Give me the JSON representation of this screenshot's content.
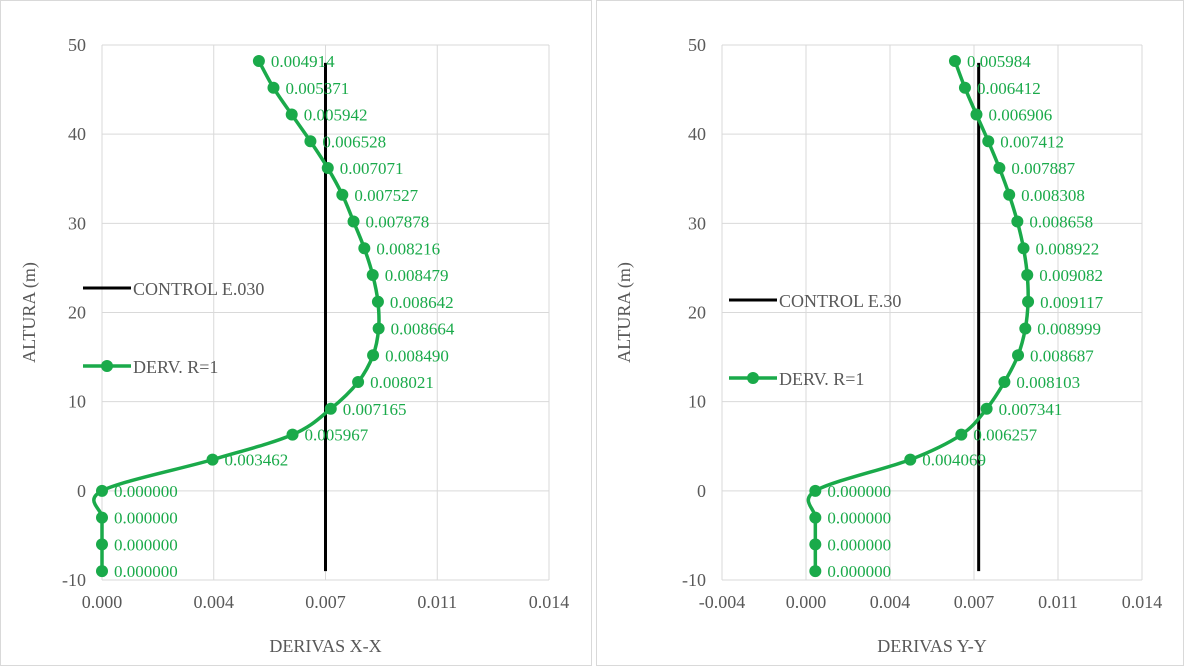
{
  "chart_data": [
    {
      "type": "line",
      "xlabel": "DERIVAS X-X",
      "ylabel": "ALTURA (m)",
      "xlim": [
        0.0,
        0.014
      ],
      "ylim": [
        -10,
        50
      ],
      "xticks": [
        "0.000",
        "0.004",
        "0.007",
        "0.011",
        "0.014"
      ],
      "yticks": [
        "-10",
        "0",
        "10",
        "20",
        "30",
        "40",
        "50"
      ],
      "grid": true,
      "legend": "left",
      "series": [
        {
          "name": "CONTROL E.030",
          "color": "#000000",
          "x": [
            0.007,
            0.007
          ],
          "y": [
            -9,
            48
          ]
        },
        {
          "name": "DERV. R=1",
          "color": "#1aaa4a",
          "x": [
            0.0,
            0.0,
            0.0,
            0.0,
            0.003462,
            0.005967,
            0.007165,
            0.008021,
            0.00849,
            0.008664,
            0.008642,
            0.008479,
            0.008216,
            0.007878,
            0.007527,
            0.007071,
            0.006528,
            0.005942,
            0.005371,
            0.004914
          ],
          "y": [
            -9,
            -6,
            -3,
            0,
            3.5,
            6.3,
            9.2,
            12.2,
            15.2,
            18.2,
            21.2,
            24.2,
            27.2,
            30.2,
            33.2,
            36.2,
            39.2,
            42.2,
            45.2,
            48.2
          ],
          "labels": [
            "0.000000",
            "0.000000",
            "0.000000",
            "0.000000",
            "0.003462",
            "0.005967",
            "0.007165",
            "0.008021",
            "0.008490",
            "0.008664",
            "0.008642",
            "0.008479",
            "0.008216",
            "0.007878",
            "0.007527",
            "0.007071",
            "0.006528",
            "0.005942",
            "0.005371",
            "0.004914"
          ]
        }
      ]
    },
    {
      "type": "line",
      "xlabel": "DERIVAS Y-Y",
      "ylabel": "ALTURA (m)",
      "xlim": [
        -0.004,
        0.014
      ],
      "ylim": [
        -10,
        50
      ],
      "xticks": [
        "-0.004",
        "0.000",
        "0.004",
        "0.007",
        "0.011",
        "0.014"
      ],
      "yticks": [
        "-10",
        "0",
        "10",
        "20",
        "30",
        "40",
        "50"
      ],
      "grid": true,
      "legend": "left",
      "series": [
        {
          "name": "CONTROL E.30",
          "color": "#000000",
          "x": [
            0.007,
            0.007
          ],
          "y": [
            -9,
            48
          ]
        },
        {
          "name": "DERV. R=1",
          "color": "#1aaa4a",
          "x": [
            0.0,
            0.0,
            0.0,
            0.0,
            0.004069,
            0.006257,
            0.007341,
            0.008103,
            0.008687,
            0.008999,
            0.009117,
            0.009082,
            0.008922,
            0.008658,
            0.008308,
            0.007887,
            0.007412,
            0.006906,
            0.006412,
            0.005984
          ],
          "y": [
            -9,
            -6,
            -3,
            0,
            3.5,
            6.3,
            9.2,
            12.2,
            15.2,
            18.2,
            21.2,
            24.2,
            27.2,
            30.2,
            33.2,
            36.2,
            39.2,
            42.2,
            45.2,
            48.2
          ],
          "labels": [
            "0.000000",
            "0.000000",
            "0.000000",
            "0.000000",
            "0.004069",
            "0.006257",
            "0.007341",
            "0.008103",
            "0.008687",
            "0.008999",
            "0.009117",
            "0.009082",
            "0.008922",
            "0.008658",
            "0.008308",
            "0.007887",
            "0.007412",
            "0.006906",
            "0.006412",
            "0.005984"
          ]
        }
      ]
    }
  ]
}
